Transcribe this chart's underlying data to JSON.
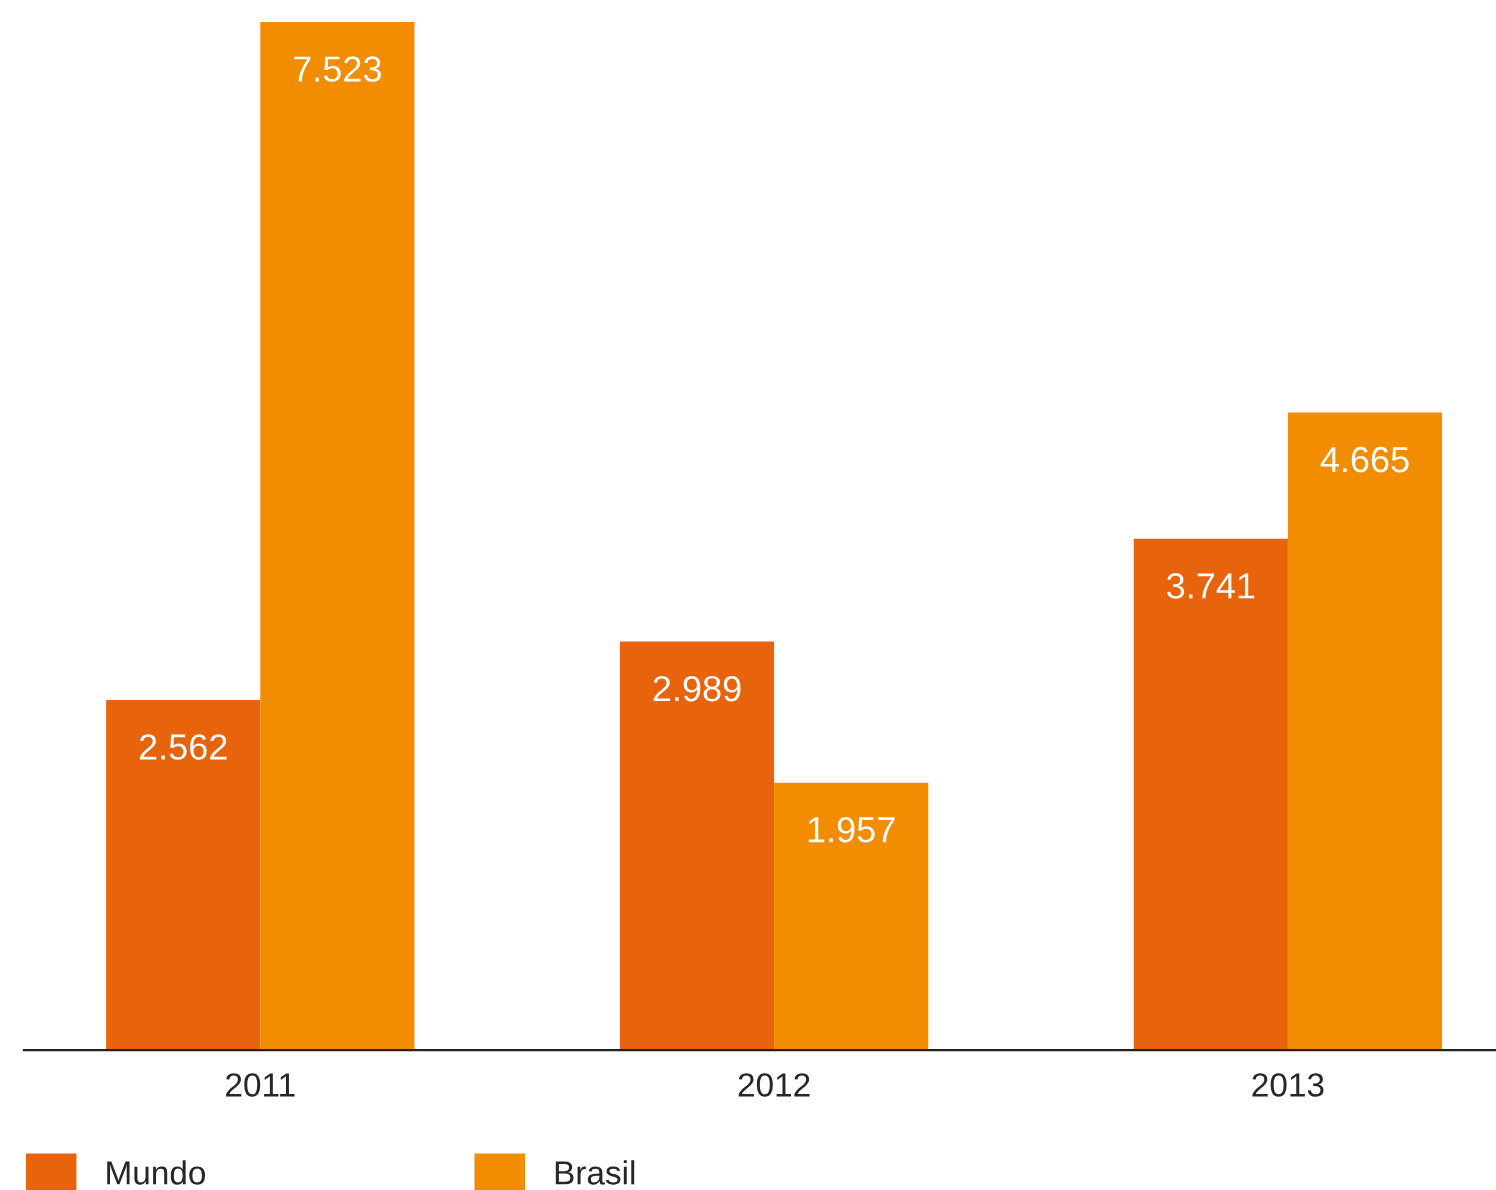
{
  "chart_data": {
    "type": "bar",
    "categories": [
      "2011",
      "2012",
      "2013"
    ],
    "series": [
      {
        "name": "Mundo",
        "color": "#e8640c",
        "values": [
          2.562,
          2.989,
          3.741
        ]
      },
      {
        "name": "Brasil",
        "color": "#f28c00",
        "values": [
          7.523,
          1.957,
          4.665
        ]
      }
    ],
    "data_labels": true,
    "legend": "bottom left",
    "grid": false,
    "tick_labels": "x"
  }
}
